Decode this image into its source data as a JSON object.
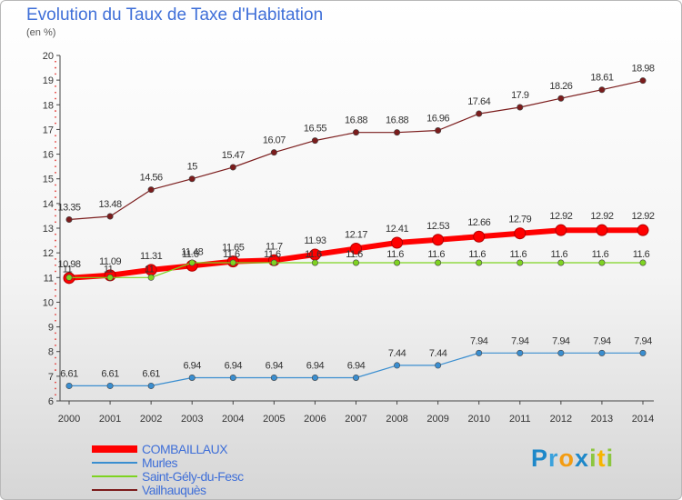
{
  "title": "Evolution du Taux de Taxe d'Habitation",
  "subtitle": "(en %)",
  "brand": {
    "letters": [
      {
        "ch": "P",
        "color": "#1e88c9"
      },
      {
        "ch": "r",
        "color": "#3aa1dc"
      },
      {
        "ch": "o",
        "color": "#f39c12"
      },
      {
        "ch": "x",
        "color": "#1e88c9"
      },
      {
        "ch": "i",
        "color": "#8cc63f"
      },
      {
        "ch": "t",
        "color": "#f7b500"
      },
      {
        "ch": "i",
        "color": "#8cc63f"
      }
    ]
  },
  "chart_data": {
    "type": "line",
    "x": [
      2000,
      2001,
      2002,
      2003,
      2004,
      2005,
      2006,
      2007,
      2008,
      2009,
      2010,
      2011,
      2012,
      2013,
      2014
    ],
    "ylim": [
      6,
      20
    ],
    "yticks": [
      6,
      7,
      8,
      9,
      10,
      11,
      12,
      13,
      14,
      15,
      16,
      17,
      18,
      19,
      20
    ],
    "grid": false,
    "legend_position": "bottom-left",
    "series": [
      {
        "name": "COMBAILLAUX",
        "color": "#ff0000",
        "values": [
          10.98,
          11.09,
          11.31,
          11.48,
          11.65,
          11.7,
          11.93,
          12.17,
          12.41,
          12.53,
          12.66,
          12.79,
          12.92,
          12.92,
          12.92
        ],
        "labels": [
          "10.98",
          "11.09",
          "11.31",
          "11.48",
          "11.65",
          "11.7",
          "11.93",
          "12.17",
          "12.41",
          "12.53",
          "12.66",
          "12.79",
          "12.92",
          "12.92",
          "12.92"
        ]
      },
      {
        "name": "Murles",
        "color": "#3a8ed0",
        "values": [
          6.61,
          6.61,
          6.61,
          6.94,
          6.94,
          6.94,
          6.94,
          6.94,
          7.44,
          7.44,
          7.94,
          7.94,
          7.94,
          7.94,
          7.94
        ],
        "labels": [
          "6.61",
          "6.61",
          "6.61",
          "6.94",
          "6.94",
          "6.94",
          "6.94",
          "6.94",
          "7.44",
          "7.44",
          "7.94",
          "7.94",
          "7.94",
          "7.94",
          "7.94"
        ]
      },
      {
        "name": "Saint-Gély-du-Fesc",
        "color": "#7ed321",
        "values": [
          11,
          11,
          11,
          11.6,
          11.6,
          11.6,
          11.6,
          11.6,
          11.6,
          11.6,
          11.6,
          11.6,
          11.6,
          11.6,
          11.6
        ],
        "labels": [
          "11",
          "11",
          "11",
          "11.6",
          "11.6",
          "11.6",
          "11.6",
          "11.6",
          "11.6",
          "11.6",
          "11.6",
          "11.6",
          "11.6",
          "11.6",
          "11.6"
        ]
      },
      {
        "name": "Vailhauquès",
        "color": "#7b1c1c",
        "values": [
          13.35,
          13.48,
          14.56,
          15,
          15.47,
          16.07,
          16.55,
          16.88,
          16.88,
          16.96,
          17.64,
          17.9,
          18.26,
          18.61,
          18.98
        ],
        "labels": [
          "13.35",
          "13.48",
          "14.56",
          "15",
          "15.47",
          "16.07",
          "16.55",
          "16.88",
          "16.88",
          "16.96",
          "17.64",
          "17.9",
          "18.26",
          "18.61",
          "18.98"
        ]
      }
    ]
  }
}
